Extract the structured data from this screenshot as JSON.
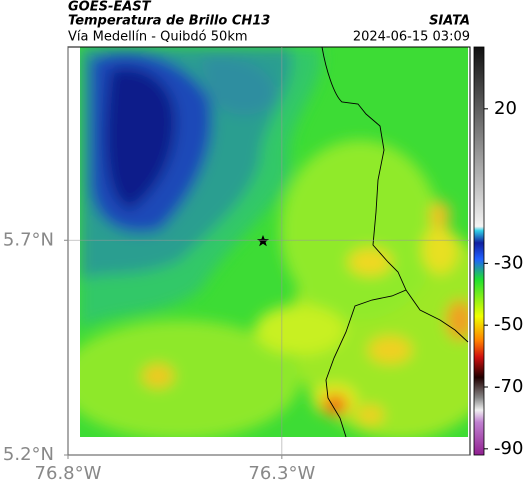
{
  "header": {
    "source": "GOES-EAST",
    "title": "Temperatura de Brillo CH13",
    "brand": "SIATA",
    "subtitle": "Vía Medellín - Quibdó 50km",
    "timestamp": "2024-06-15 03:09"
  },
  "map": {
    "xlim": [
      -76.8,
      -75.86
    ],
    "ylim": [
      5.2,
      6.15
    ],
    "xticks": [
      {
        "value": -76.8,
        "label": "76.8°W"
      },
      {
        "value": -76.3,
        "label": "76.3°W"
      }
    ],
    "yticks": [
      {
        "value": 5.7,
        "label": "5.7°N"
      },
      {
        "value": 5.2,
        "label": "5.2°N"
      }
    ]
  },
  "colorbar": {
    "lim": [
      -92,
      40
    ],
    "ticks": [
      20,
      -30,
      -50,
      -70,
      -90
    ]
  }
}
